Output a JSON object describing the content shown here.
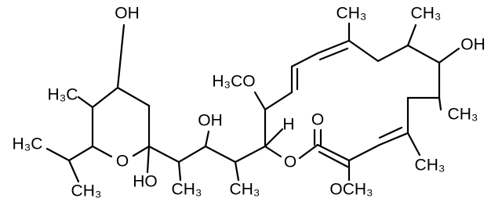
{
  "labels": [
    "OH",
    "H₃C",
    "H₃C",
    "CH₃",
    "O",
    "HO",
    "OH",
    "CH₃",
    "CH₃",
    "H₃CO",
    "H",
    "O",
    "O",
    "OCH₃",
    "CH₃",
    "CH₃",
    "OH",
    "CH₃",
    "CH₃"
  ]
}
